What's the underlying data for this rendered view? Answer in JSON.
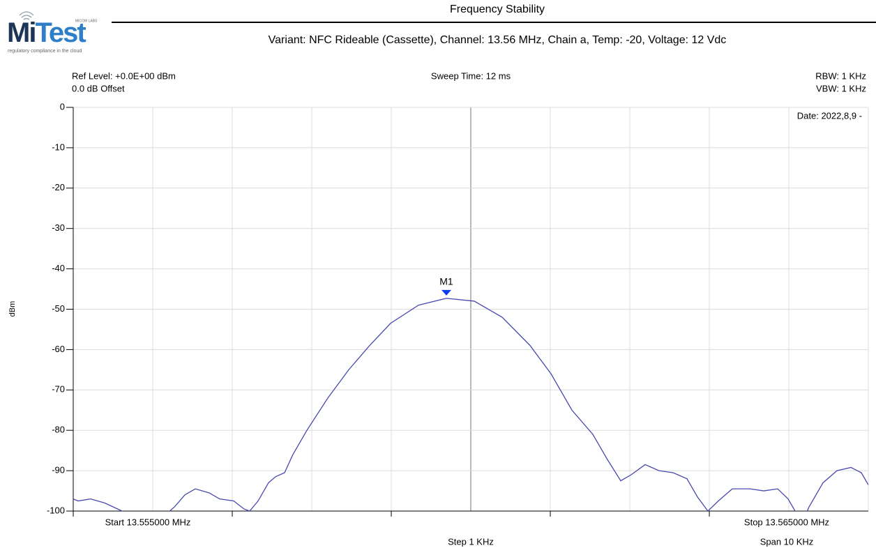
{
  "logo": {
    "brand_first": "Mi",
    "brand_second": "Test",
    "maker": "MICOM LABS",
    "tagline": "regulatory compliance in the cloud"
  },
  "chart_data": {
    "type": "line",
    "title": "Frequency Stability",
    "subtitle": "Variant: NFC Rideable (Cassette), Channel: 13.56 MHz, Chain a, Temp: -20, Voltage: 12 Vdc",
    "ref_level": "Ref Level: +0.0E+00 dBm",
    "offset": "0.0 dB Offset",
    "sweep_time": "Sweep Time: 12 ms",
    "rbw": "RBW: 1 KHz",
    "vbw": "VBW: 1 KHz",
    "date": "Date: 2022,8,9 -",
    "y_label": "dBm",
    "start": "Start 13.555000 MHz",
    "stop": "Stop 13.565000 MHz",
    "step": "Step 1 KHz",
    "span": "Span 10 KHz",
    "xlim": [
      13.555,
      13.565
    ],
    "xticks": [
      13.555,
      13.556,
      13.557,
      13.558,
      13.559,
      13.56,
      13.561,
      13.562,
      13.563,
      13.564,
      13.565
    ],
    "ylim": [
      -100,
      0
    ],
    "yticks": [
      0,
      -10,
      -20,
      -30,
      -40,
      -50,
      -60,
      -70,
      -80,
      -90,
      -100
    ],
    "grid": true,
    "series": [
      {
        "color": "#4848b0",
        "x": [
          13.555,
          13.555061,
          13.555219,
          13.555395,
          13.555614,
          13.555789,
          13.556096,
          13.556272,
          13.556404,
          13.556535,
          13.556711,
          13.556842,
          13.557018,
          13.557149,
          13.557219,
          13.557325,
          13.557456,
          13.557544,
          13.557658,
          13.557763,
          13.557939,
          13.558202,
          13.558465,
          13.558728,
          13.558991,
          13.559342,
          13.559693,
          13.560044,
          13.560395,
          13.560746,
          13.561009,
          13.561272,
          13.561535,
          13.561711,
          13.561886,
          13.562018,
          13.562193,
          13.562368,
          13.562544,
          13.562719,
          13.562851,
          13.562982,
          13.563114,
          13.563289,
          13.563509,
          13.563684,
          13.56386,
          13.563991,
          13.564079,
          13.564167,
          13.564254,
          13.56443,
          13.564605,
          13.564781,
          13.564912,
          13.565
        ],
        "values": [
          -97,
          -97.5,
          -97,
          -98,
          -100,
          -102,
          -102,
          -99,
          -96,
          -94.5,
          -95.5,
          -97,
          -97.5,
          -99.5,
          -100,
          -97.5,
          -93,
          -91.5,
          -90.5,
          -86,
          -80,
          -72,
          -65,
          -59,
          -53.5,
          -49,
          -47.3,
          -48,
          -52,
          -59,
          -66,
          -75,
          -81,
          -87,
          -92.5,
          -91,
          -88.5,
          -90,
          -90.5,
          -92,
          -96.5,
          -100,
          -97.5,
          -94.5,
          -94.5,
          -95,
          -94.5,
          -97,
          -100,
          -103,
          -99,
          -93,
          -90,
          -89.2,
          -90.5,
          -93.5
        ]
      }
    ],
    "marker": {
      "label": "M1",
      "x": 13.559693,
      "y": -47.3,
      "color": "#0a3cf0"
    }
  }
}
